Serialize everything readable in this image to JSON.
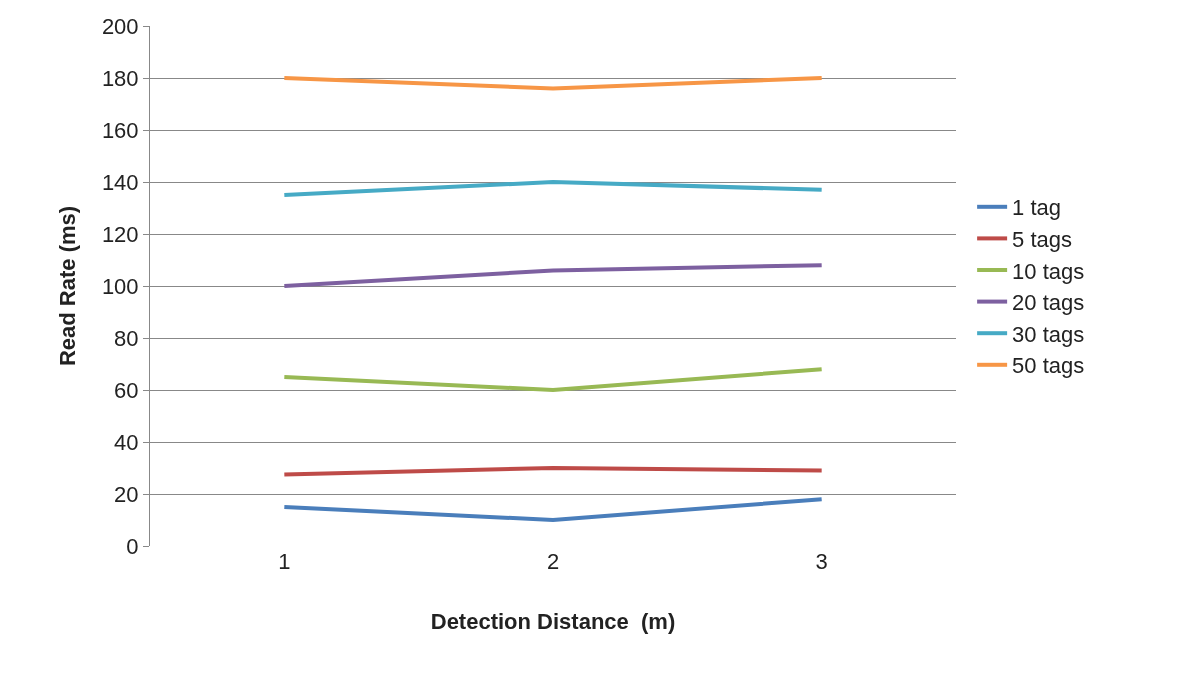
{
  "chart_data": {
    "type": "line",
    "xlabel": "Detection Distance  (m)",
    "ylabel": "Read Rate (ms)",
    "categories": [
      "1",
      "2",
      "3"
    ],
    "series": [
      {
        "name": "1 tag",
        "color": "#4a7ebb",
        "values": [
          15,
          10,
          18
        ]
      },
      {
        "name": "5 tags",
        "color": "#be4b48",
        "values": [
          27.5,
          30,
          29
        ]
      },
      {
        "name": "10 tags",
        "color": "#98b954",
        "values": [
          65,
          60,
          68
        ]
      },
      {
        "name": "20 tags",
        "color": "#7d60a0",
        "values": [
          100,
          106,
          108
        ]
      },
      {
        "name": "30 tags",
        "color": "#46aac5",
        "values": [
          135,
          140,
          137
        ]
      },
      {
        "name": "50 tags",
        "color": "#f79646",
        "values": [
          180,
          176,
          180
        ]
      }
    ],
    "ylim": [
      0,
      200
    ],
    "yticks": [
      0,
      20,
      40,
      60,
      80,
      100,
      120,
      140,
      160,
      180,
      200
    ],
    "grid": "y",
    "legend": "right",
    "marker": "none",
    "line_style": "solid"
  }
}
